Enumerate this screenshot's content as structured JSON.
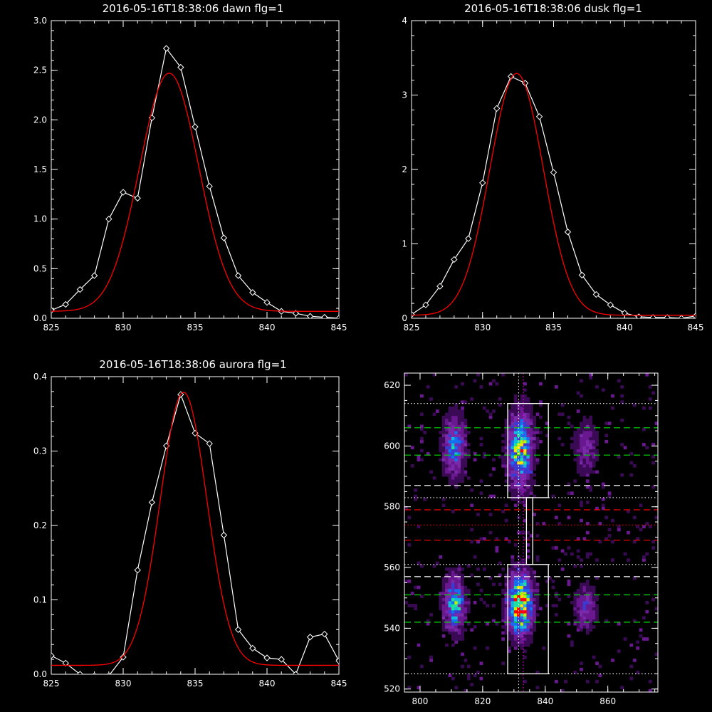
{
  "chart_data": [
    {
      "type": "line",
      "title": "2016-05-16T18:38:06 dawn flg=1",
      "xlabel": "",
      "ylabel": "",
      "xlim": [
        825,
        845
      ],
      "ylim": [
        0,
        3.0
      ],
      "xticks": [
        825,
        830,
        835,
        840,
        845
      ],
      "yticks": [
        0.0,
        0.5,
        1.0,
        1.5,
        2.0,
        2.5,
        3.0
      ],
      "ytick_labels": [
        "0.0",
        "0.5",
        "1.0",
        "1.5",
        "2.0",
        "2.5",
        "3.0"
      ],
      "series": [
        {
          "color": "#ffffff",
          "marker": "diamond",
          "x": [
            825,
            826,
            827,
            828,
            829,
            830,
            831,
            832,
            833,
            834,
            835,
            836,
            837,
            838,
            839,
            840,
            841,
            842,
            843,
            844,
            845
          ],
          "y": [
            0.08,
            0.14,
            0.29,
            0.43,
            1.0,
            1.27,
            1.21,
            2.02,
            2.72,
            2.53,
            1.93,
            1.33,
            0.81,
            0.43,
            0.26,
            0.16,
            0.07,
            0.05,
            0.02,
            0.01,
            0.0
          ]
        },
        {
          "color": "#ff0000",
          "type": "fit",
          "amp": 2.4,
          "center": 833.2,
          "sigma": 2.06,
          "offset": 0.07
        }
      ]
    },
    {
      "type": "line",
      "title": "2016-05-16T18:38:06 dusk flg=1",
      "xlabel": "",
      "ylabel": "",
      "xlim": [
        825,
        845
      ],
      "ylim": [
        0,
        4
      ],
      "xticks": [
        825,
        830,
        835,
        840,
        845
      ],
      "yticks": [
        0,
        1,
        2,
        3,
        4
      ],
      "ytick_labels": [
        "0",
        "1",
        "2",
        "3",
        "4"
      ],
      "series": [
        {
          "color": "#ffffff",
          "marker": "diamond",
          "x": [
            825,
            826,
            827,
            828,
            829,
            830,
            831,
            832,
            833,
            834,
            835,
            836,
            837,
            838,
            839,
            840,
            841,
            842,
            843,
            844,
            845
          ],
          "y": [
            0.05,
            0.18,
            0.43,
            0.79,
            1.07,
            1.82,
            2.82,
            3.25,
            3.16,
            2.71,
            1.96,
            1.16,
            0.58,
            0.32,
            0.18,
            0.07,
            0.02,
            0.01,
            0.01,
            0.0,
            0.03
          ]
        },
        {
          "color": "#ff0000",
          "type": "fit",
          "amp": 3.25,
          "center": 832.4,
          "sigma": 1.88,
          "offset": 0.04
        }
      ]
    },
    {
      "type": "line",
      "title": "2016-05-16T18:38:06 aurora flg=1",
      "xlabel": "",
      "ylabel": "",
      "xlim": [
        825,
        845
      ],
      "ylim": [
        0,
        0.4
      ],
      "xticks": [
        825,
        830,
        835,
        840,
        845
      ],
      "yticks": [
        0.0,
        0.1,
        0.2,
        0.3,
        0.4
      ],
      "ytick_labels": [
        "0.0",
        "0.1",
        "0.2",
        "0.3",
        "0.4"
      ],
      "series": [
        {
          "color": "#ffffff",
          "marker": "diamond",
          "x": [
            825,
            826,
            827,
            828,
            829,
            830,
            831,
            832,
            833,
            834,
            835,
            836,
            837,
            838,
            839,
            840,
            841,
            842,
            843,
            844,
            845
          ],
          "y": [
            0.025,
            0.015,
            0.0,
            -0.002,
            -0.002,
            0.023,
            0.14,
            0.231,
            0.307,
            0.376,
            0.324,
            0.31,
            0.187,
            0.06,
            0.035,
            0.022,
            0.02,
            0.0,
            0.05,
            0.054,
            0.018
          ]
        },
        {
          "color": "#ff0000",
          "type": "fit",
          "amp": 0.367,
          "center": 834.2,
          "sigma": 1.62,
          "offset": 0.012
        }
      ]
    },
    {
      "type": "heatmap",
      "title": "",
      "xlabel": "",
      "ylabel": "",
      "xlim": [
        795,
        876
      ],
      "ylim": [
        519,
        624
      ],
      "xticks": [
        800,
        820,
        840,
        860
      ],
      "yticks": [
        520,
        540,
        560,
        580,
        600,
        620
      ],
      "colormap": [
        "#000000",
        "#3a0a55",
        "#6a1890",
        "#7a2aa8",
        "#3c3ad0",
        "#1570f0",
        "#10b8e0",
        "#20e0a0",
        "#c0f000",
        "#ffe000",
        "#ff0000"
      ],
      "blobs": [
        {
          "x": 811,
          "y": 600,
          "sx": 2.2,
          "sy": 6.5,
          "amp": 0.55
        },
        {
          "x": 811,
          "y": 548,
          "sx": 2.2,
          "sy": 6.0,
          "amp": 0.6
        },
        {
          "x": 832,
          "y": 599,
          "sx": 2.5,
          "sy": 8.0,
          "amp": 0.8
        },
        {
          "x": 832,
          "y": 548,
          "sx": 2.6,
          "sy": 6.5,
          "amp": 1.0
        },
        {
          "x": 853,
          "y": 600,
          "sx": 2.5,
          "sy": 5.5,
          "amp": 0.28
        },
        {
          "x": 853,
          "y": 547,
          "sx": 2.3,
          "sy": 4.5,
          "amp": 0.35
        }
      ],
      "hlines": [
        {
          "y": 614,
          "color": "#ffffff",
          "style": "dotted"
        },
        {
          "y": 606,
          "color": "#00dd00",
          "style": "dashed"
        },
        {
          "y": 597,
          "color": "#00dd00",
          "style": "dashed"
        },
        {
          "y": 587,
          "color": "#ffffff",
          "style": "dashed"
        },
        {
          "y": 583,
          "color": "#ffffff",
          "style": "dotted"
        },
        {
          "y": 579,
          "color": "#ff0000",
          "style": "dashed"
        },
        {
          "y": 574,
          "color": "#ff0000",
          "style": "dotted"
        },
        {
          "y": 569,
          "color": "#ff0000",
          "style": "dashed"
        },
        {
          "y": 561,
          "color": "#ffffff",
          "style": "dotted"
        },
        {
          "y": 557,
          "color": "#ffffff",
          "style": "dashed"
        },
        {
          "y": 551,
          "color": "#00dd00",
          "style": "dashed"
        },
        {
          "y": 542,
          "color": "#00dd00",
          "style": "dashed"
        },
        {
          "y": 525,
          "color": "#ffffff",
          "style": "dotted"
        }
      ],
      "vlines": [
        {
          "x": 831.5,
          "color": "#ffffff",
          "style": "dotted"
        },
        {
          "x": 833,
          "color": "#ff00ff",
          "style": "dotted"
        }
      ],
      "boxes": [
        {
          "x0": 828,
          "x1": 841,
          "y0": 583,
          "y1": 614,
          "color": "#ffffff"
        },
        {
          "x0": 828,
          "x1": 841,
          "y0": 525,
          "y1": 561,
          "color": "#ffffff"
        },
        {
          "x0": 834,
          "x1": 836,
          "y0": 561,
          "y1": 583,
          "color": "#ffffff"
        }
      ]
    }
  ]
}
